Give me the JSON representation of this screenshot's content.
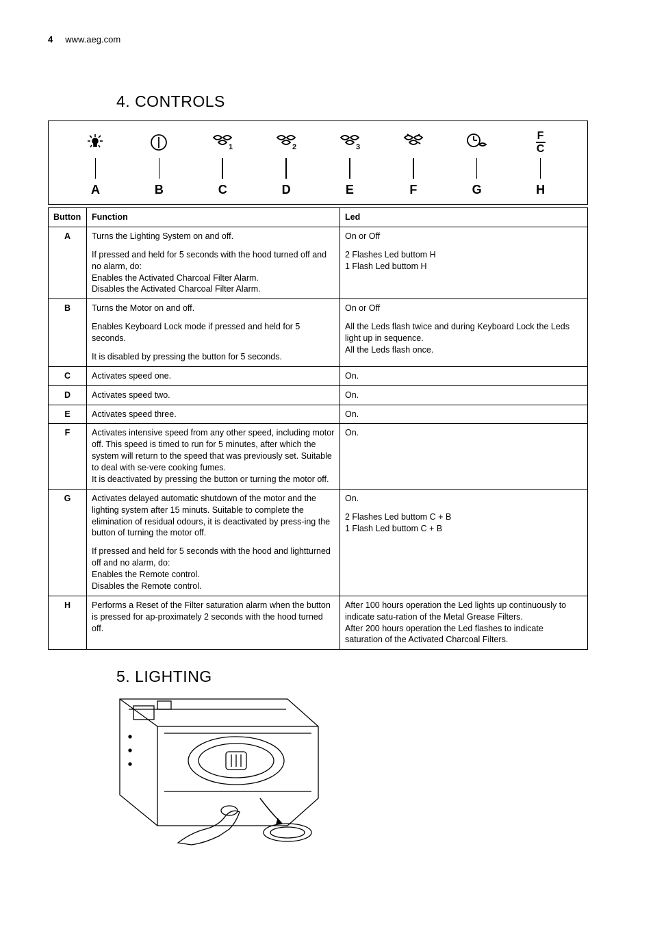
{
  "header": {
    "page_number": "4",
    "url": "www.aeg.com"
  },
  "sections": {
    "controls_title": "4.  CONTROLS",
    "lighting_title": "5.  LIGHTING"
  },
  "icon_bar": {
    "letters": [
      "A",
      "B",
      "C",
      "D",
      "E",
      "F",
      "G",
      "H"
    ],
    "fc_top": "F",
    "fc_bottom": "C"
  },
  "table": {
    "headers": {
      "button": "Button",
      "function": "Function",
      "led": "Led"
    },
    "rows": [
      {
        "btn": "A",
        "fn": [
          "Turns the Lighting System on and off.",
          "If pressed and held for 5 seconds with the hood turned off and no alarm, do:\nEnables the Activated Charcoal Filter Alarm.\nDisables the Activated Charcoal Filter Alarm."
        ],
        "led": [
          "On or Off",
          "2 Flashes Led buttom H\n1 Flash Led buttom H"
        ]
      },
      {
        "btn": "B",
        "fn": [
          "Turns the Motor on and off.",
          "Enables Keyboard Lock mode if pressed and held for 5 seconds.",
          "It is disabled by pressing the button for 5 seconds."
        ],
        "led": [
          "On or Off",
          "All the Leds flash twice and during Keyboard Lock the Leds light up in sequence.\nAll the Leds flash once."
        ]
      },
      {
        "btn": "C",
        "fn": [
          "Activates speed one."
        ],
        "led": [
          "On."
        ]
      },
      {
        "btn": "D",
        "fn": [
          "Activates speed two."
        ],
        "led": [
          "On."
        ]
      },
      {
        "btn": "E",
        "fn": [
          "Activates speed three."
        ],
        "led": [
          "On."
        ]
      },
      {
        "btn": "F",
        "fn": [
          "Activates intensive speed from any other speed, including motor off. This speed is timed to run for 5 minutes, after which the system will return to the speed that was previously set. Suitable to deal with se-vere cooking fumes.\nIt is deactivated by pressing the button or turning the motor off."
        ],
        "led": [
          "On."
        ]
      },
      {
        "btn": "G",
        "fn": [
          "Activates delayed automatic shutdown of the motor and the lighting system after 15 minuts. Suitable to complete the elimination of residual odours, it is deactivated by press-ing the button of turning the motor off.",
          "If pressed and held for 5 seconds with the hood and lightturned off and no alarm, do:\nEnables the Remote control.\nDisables the Remote control."
        ],
        "led": [
          "On.",
          "2 Flashes Led buttom C + B\n1 Flash Led buttom C + B"
        ]
      },
      {
        "btn": "H",
        "fn": [
          "Performs a Reset of the Filter saturation alarm when the button is pressed for ap-proximately 2 seconds with the hood turned off."
        ],
        "led": [
          "After 100 hours operation the Led lights up continuously to indicate satu-ration of the Metal Grease Filters.\nAfter 200 hours operation the Led flashes to indicate saturation of the Activated Charcoal Filters."
        ]
      }
    ]
  }
}
